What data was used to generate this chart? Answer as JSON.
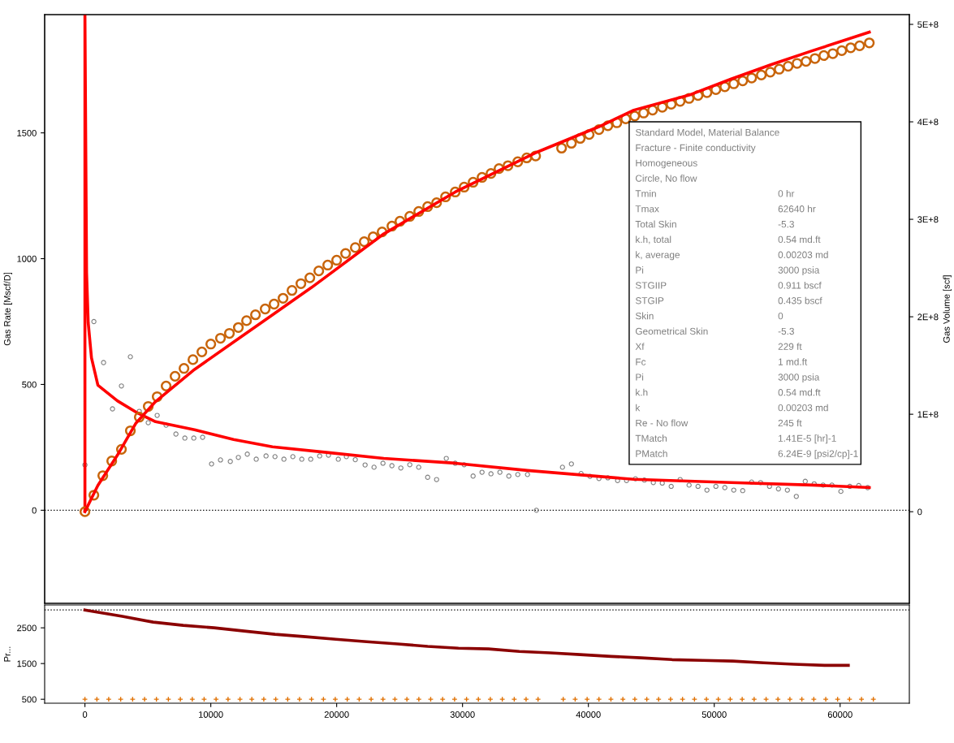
{
  "chart_data": [
    {
      "type": "line",
      "ylabel": "Gas Rate [Mscf/D]",
      "y2label": "Gas Volume [scf]",
      "tick_labels": "y",
      "xlim": [
        -3200,
        65500
      ],
      "ylim": [
        -370,
        1970
      ],
      "yticks": [
        0,
        500,
        1000,
        1500
      ],
      "y2lim": [
        -94000000.0,
        510000000.0
      ],
      "y2ticks": [
        {
          "value": 0,
          "label": "0"
        },
        {
          "value": 100000000.0,
          "label": "1E+8"
        },
        {
          "value": 200000000.0,
          "label": "2E+8"
        },
        {
          "value": 300000000.0,
          "label": "3E+8"
        },
        {
          "value": 400000000.0,
          "label": "4E+8"
        },
        {
          "value": 500000000.0,
          "label": "5E+8"
        }
      ],
      "ref_lines": [
        {
          "axis": "y",
          "value": 0,
          "color": "#000000",
          "line_style": "dotted"
        }
      ],
      "series": [
        {
          "type": "scatter",
          "marker": "circle",
          "color": "#808080",
          "x": [
            0,
            710,
            1480,
            2190,
            2900,
            3610,
            4320,
            5030,
            5740,
            6450,
            7230,
            7940,
            8650,
            9350,
            10060,
            10770,
            11550,
            12190,
            12900,
            13610,
            14390,
            15100,
            15810,
            16520,
            17230,
            17940,
            18650,
            19350,
            20130,
            20770,
            21480,
            22260,
            22970,
            23680,
            24390,
            25100,
            25810,
            26520,
            27230,
            27940,
            28710,
            29420,
            30130,
            30840,
            31550,
            32260,
            32970,
            33680,
            34390,
            35160,
            35870,
            37940,
            38650,
            39420,
            40130,
            40840,
            41550,
            42320,
            43030,
            43740,
            44450,
            45160,
            45870,
            46580,
            47290,
            48000,
            48710,
            49420,
            50130,
            50840,
            51550,
            52260,
            52970,
            53680,
            54390,
            55100,
            55810,
            56520,
            57230,
            57940,
            58650,
            59350,
            60060,
            60770,
            61480,
            62190
          ],
          "values": [
            180,
            750,
            587,
            403,
            494,
            610,
            393,
            348,
            377,
            338,
            303,
            287,
            287,
            290,
            184,
            200,
            194,
            210,
            223,
            203,
            216,
            213,
            203,
            213,
            203,
            203,
            216,
            219,
            203,
            213,
            201,
            180,
            171,
            187,
            177,
            168,
            181,
            171,
            131,
            122,
            206,
            187,
            181,
            136,
            151,
            145,
            151,
            136,
            142,
            142,
            0,
            171,
            184,
            146,
            135,
            126,
            129,
            118,
            118,
            125,
            120,
            110,
            108,
            95,
            122,
            100,
            95,
            80,
            95,
            90,
            80,
            78,
            112,
            110,
            95,
            85,
            80,
            55,
            115,
            105,
            100,
            100,
            75,
            95,
            98,
            90
          ]
        },
        {
          "type": "scatter",
          "marker": "circle",
          "axis": "y2",
          "color": "#c8640a",
          "x": [
            0,
            710,
            1420,
            2130,
            2900,
            3610,
            4320,
            5030,
            5740,
            6450,
            7160,
            7870,
            8580,
            9290,
            10000,
            10770,
            11480,
            12190,
            12840,
            13550,
            14320,
            15030,
            15740,
            16450,
            17160,
            17870,
            18580,
            19290,
            20000,
            20710,
            21480,
            22190,
            22900,
            23610,
            24390,
            25030,
            25810,
            26520,
            27230,
            27940,
            28650,
            29420,
            30130,
            30840,
            31550,
            32260,
            32900,
            33610,
            34390,
            35100,
            35810,
            37870,
            38650,
            39350,
            40060,
            40840,
            41550,
            42260,
            42970,
            43680,
            44390,
            45100,
            45870,
            46580,
            47290,
            48000,
            48710,
            49420,
            50130,
            50840,
            51550,
            52260,
            52970,
            53740,
            54450,
            55160,
            55870,
            56580,
            57290,
            58000,
            58710,
            59420,
            60130,
            60840,
            61550,
            62320
          ],
          "values": [
            0,
            17000000.0,
            37000000.0,
            52000000.0,
            64000000.0,
            83000000.0,
            97000000.0,
            108000000.0,
            118000000.0,
            129000000.0,
            139000000.0,
            147000000.0,
            156000000.0,
            164000000.0,
            172000000.0,
            178000000.0,
            183000000.0,
            189000000.0,
            196000000.0,
            202000000.0,
            208000000.0,
            213000000.0,
            219000000.0,
            227000000.0,
            234000000.0,
            240000000.0,
            247000000.0,
            253000000.0,
            258000000.0,
            265000000.0,
            271000000.0,
            277000000.0,
            282000000.0,
            287000000.0,
            293000000.0,
            298000000.0,
            303000000.0,
            308000000.0,
            313000000.0,
            317000000.0,
            323000000.0,
            328000000.0,
            333000000.0,
            338000000.0,
            343000000.0,
            347000000.0,
            352000000.0,
            355000000.0,
            359000000.0,
            363000000.0,
            365000000.0,
            373000000.0,
            378000000.0,
            383000000.0,
            387000000.0,
            392000000.0,
            396000000.0,
            399000000.0,
            403000000.0,
            406000000.0,
            409000000.0,
            412000000.0,
            415000000.0,
            418000000.0,
            421000000.0,
            424000000.0,
            427000000.0,
            430000000.0,
            433000000.0,
            436000000.0,
            439000000.0,
            442000000.0,
            445000000.0,
            448000000.0,
            451000000.0,
            454000000.0,
            457000000.0,
            460000000.0,
            462000000.0,
            465000000.0,
            468000000.0,
            470000000.0,
            473000000.0,
            476000000.0,
            478000000.0,
            481000000.0
          ]
        },
        {
          "color": "#ff0000",
          "x": [
            0,
            0,
            130,
            260,
            520,
            1030,
            2580,
            4060,
            5610,
            8710,
            11810,
            14900,
            19350,
            23740,
            29420,
            35160,
            43610,
            51350,
            57810,
            62320
          ],
          "values": [
            0,
            1970,
            945,
            745,
            606,
            497,
            435,
            390,
            352,
            320,
            281,
            252,
            229,
            206,
            187,
            158,
            123,
            110,
            100,
            90
          ]
        },
        {
          "axis": "y2",
          "color": "#ff0000",
          "x": [
            0,
            1030,
            2580,
            4060,
            5610,
            8710,
            11810,
            14900,
            18000,
            23740,
            29420,
            35940,
            40840,
            43610,
            48130,
            51350,
            54580,
            57810,
            62320
          ],
          "values": [
            0,
            27000000.0,
            58000000.0,
            91000000.0,
            113000000.0,
            146000000.0,
            174000000.0,
            202000000.0,
            230000000.0,
            285000000.0,
            328000000.0,
            369000000.0,
            395000000.0,
            412000000.0,
            428000000.0,
            444000000.0,
            459000000.0,
            473000000.0,
            492000000.0
          ]
        }
      ],
      "annotations": [
        "Standard Model, Material Balance",
        "Fracture - Finite conductivity",
        "Homogeneous",
        "Circle, No flow",
        "Tmin",
        "0 hr",
        "Tmax",
        "62640 hr",
        "Total Skin",
        "-5.3",
        "k.h, total",
        "0.54 md.ft",
        "k, average",
        "0.00203 md",
        "Pi",
        "3000 psia",
        "STGIIP",
        "0.911 bscf",
        "STGIP",
        "0.435 bscf",
        "Skin",
        "0",
        "Geometrical Skin",
        "-5.3",
        "Xf",
        "229 ft",
        "Fc",
        "1 md.ft",
        "Pi",
        "3000 psia",
        "k.h",
        "0.54 md.ft",
        "k",
        "0.00203 md",
        "Re - No flow",
        "245 ft",
        "TMatch",
        "1.41E-5 [hr]-1",
        "PMatch",
        "6.24E-9 [psi2/cp]-1"
      ]
    },
    {
      "type": "line",
      "ylabel": "Pr...",
      "xlim": [
        -3200,
        65500
      ],
      "ylim": [
        390,
        3140
      ],
      "yticks": [
        500,
        1500,
        2500
      ],
      "xticks": [
        0,
        10000,
        20000,
        30000,
        40000,
        50000,
        60000
      ],
      "ref_lines": [
        {
          "axis": "y",
          "value": 3000,
          "color": "#000000",
          "line_style": "dotted"
        }
      ],
      "series": [
        {
          "color": "#8b0000",
          "x": [
            0,
            2970,
            5420,
            7810,
            10260,
            12650,
            15100,
            17550,
            19940,
            22390,
            24840,
            27230,
            29680,
            32060,
            34520,
            36970,
            39350,
            41810,
            44190,
            46650,
            49100,
            51480,
            53940,
            56320,
            58770,
            60650
          ],
          "values": [
            3000,
            2820,
            2660,
            2570,
            2500,
            2410,
            2320,
            2250,
            2180,
            2110,
            2050,
            1980,
            1930,
            1910,
            1840,
            1800,
            1750,
            1700,
            1660,
            1610,
            1590,
            1570,
            1520,
            1480,
            1450,
            1450
          ]
        },
        {
          "type": "scatter",
          "marker": "cross",
          "color": "#e07000",
          "x": [
            0,
            950,
            1890,
            2840,
            3790,
            4740,
            5680,
            6630,
            7580,
            8530,
            9470,
            10420,
            11370,
            12320,
            13260,
            14210,
            15160,
            16110,
            17050,
            18000,
            18950,
            19890,
            20840,
            21790,
            22740,
            23680,
            24630,
            25580,
            26530,
            27470,
            28420,
            29370,
            30320,
            31260,
            32210,
            33160,
            34110,
            35050,
            36000,
            38000,
            38950,
            39900,
            40840,
            41790,
            42740,
            43690,
            44640,
            45580,
            46530,
            47480,
            48430,
            49380,
            50320,
            51270,
            52220,
            53170,
            54120,
            55060,
            56010,
            56960,
            57910,
            58860,
            59800,
            60750,
            61700,
            62640
          ],
          "values": [
            500,
            500,
            500,
            500,
            500,
            500,
            500,
            500,
            500,
            500,
            500,
            500,
            500,
            500,
            500,
            500,
            500,
            500,
            500,
            500,
            500,
            500,
            500,
            500,
            500,
            500,
            500,
            500,
            500,
            500,
            500,
            500,
            500,
            500,
            500,
            500,
            500,
            500,
            500,
            500,
            500,
            500,
            500,
            500,
            500,
            500,
            500,
            500,
            500,
            500,
            500,
            500,
            500,
            500,
            500,
            500,
            500,
            500,
            500,
            500,
            500,
            500,
            500,
            500,
            500,
            500
          ]
        }
      ]
    }
  ]
}
